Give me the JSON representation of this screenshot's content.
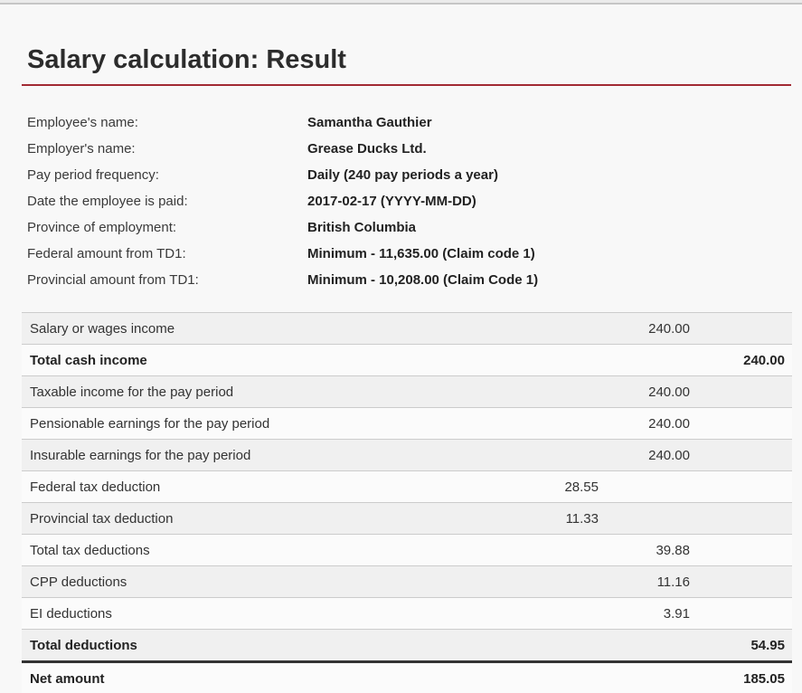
{
  "page": {
    "title": "Salary calculation: Result"
  },
  "colors": {
    "accent_rule": "#a22a33",
    "strong_rule": "#333333",
    "row_stripe": "#f0f0f0",
    "separator": "#cccccc",
    "background": "#f8f8f8"
  },
  "info": {
    "rows": [
      {
        "label": "Employee's name:",
        "value": "Samantha Gauthier"
      },
      {
        "label": "Employer's name:",
        "value": "Grease Ducks Ltd."
      },
      {
        "label": "Pay period frequency:",
        "value": "Daily (240 pay periods a year)"
      },
      {
        "label": "Date the employee is paid:",
        "value": "2017-02-17 (YYYY-MM-DD)"
      },
      {
        "label": "Province of employment:",
        "value": "British Columbia"
      },
      {
        "label": "Federal amount from TD1:",
        "value": "Minimum - 11,635.00 (Claim code 1)"
      },
      {
        "label": "Provincial amount from TD1:",
        "value": "Minimum - 10,208.00 (Claim Code 1)"
      }
    ]
  },
  "table": {
    "rows": [
      {
        "label": "Salary or wages income",
        "amount": "240.00",
        "column": "b",
        "bold": false,
        "strong_rule_below": false
      },
      {
        "label": "Total cash income",
        "amount": "240.00",
        "column": "c",
        "bold": true,
        "strong_rule_below": false
      },
      {
        "label": "Taxable income for the pay period",
        "amount": "240.00",
        "column": "b",
        "bold": false,
        "strong_rule_below": false
      },
      {
        "label": "Pensionable earnings for the pay period",
        "amount": "240.00",
        "column": "b",
        "bold": false,
        "strong_rule_below": false
      },
      {
        "label": "Insurable earnings for the pay period",
        "amount": "240.00",
        "column": "b",
        "bold": false,
        "strong_rule_below": false
      },
      {
        "label": "Federal tax deduction",
        "amount": "28.55",
        "column": "a",
        "bold": false,
        "strong_rule_below": false
      },
      {
        "label": "Provincial tax deduction",
        "amount": "11.33",
        "column": "a",
        "bold": false,
        "strong_rule_below": false
      },
      {
        "label": "Total tax deductions",
        "amount": "39.88",
        "column": "b",
        "bold": false,
        "strong_rule_below": false
      },
      {
        "label": "CPP deductions",
        "amount": "11.16",
        "column": "b",
        "bold": false,
        "strong_rule_below": false
      },
      {
        "label": "EI deductions",
        "amount": "3.91",
        "column": "b",
        "bold": false,
        "strong_rule_below": false
      },
      {
        "label": "Total deductions",
        "amount": "54.95",
        "column": "c",
        "bold": true,
        "strong_rule_below": true
      },
      {
        "label": "Net amount",
        "amount": "185.05",
        "column": "c",
        "bold": true,
        "strong_rule_below": false
      }
    ]
  }
}
